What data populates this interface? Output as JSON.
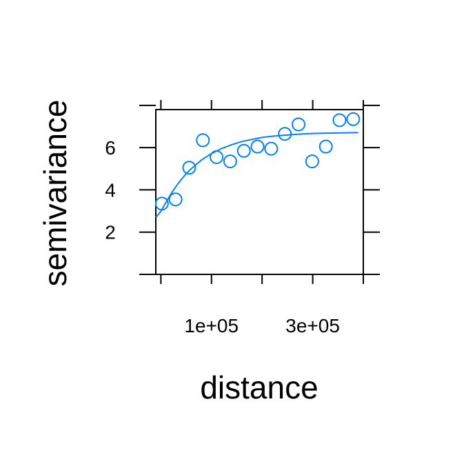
{
  "chart_data": {
    "type": "scatter",
    "xlabel": "distance",
    "ylabel": "semivariance",
    "xlim": [
      -10000,
      400000
    ],
    "ylim": [
      0,
      7.8
    ],
    "x_ticks": [
      0,
      100000,
      200000,
      300000,
      400000
    ],
    "x_tick_labels": [
      "",
      "1e+05",
      "",
      "3e+05",
      ""
    ],
    "y_ticks": [
      0,
      2,
      4,
      6,
      8
    ],
    "y_tick_labels": [
      "",
      "2",
      "4",
      "6",
      ""
    ],
    "grid": false,
    "colors": {
      "points": "#0080ff",
      "fit": "#0080ff",
      "axes": "#000000"
    },
    "series": [
      {
        "type": "scatter",
        "x": [
          2000,
          29000,
          56000,
          83000,
          110000,
          137000,
          164000,
          191000,
          218000,
          245000,
          272000,
          299000,
          326000,
          353000,
          380000
        ],
        "values": [
          3.35,
          3.55,
          5.05,
          6.35,
          5.55,
          5.35,
          5.85,
          6.05,
          5.95,
          6.65,
          7.1,
          5.35,
          6.05,
          7.3,
          7.35
        ]
      },
      {
        "type": "line",
        "x": [
          -10000,
          0,
          10000,
          20000,
          30000,
          40000,
          50000,
          60000,
          80000,
          100000,
          120000,
          140000,
          160000,
          180000,
          200000,
          220000,
          240000,
          260000,
          280000,
          300000,
          320000,
          340000,
          360000,
          380000,
          390000
        ],
        "values": [
          2.7,
          2.98,
          3.41,
          3.81,
          4.17,
          4.48,
          4.76,
          5.0,
          5.41,
          5.72,
          5.96,
          6.14,
          6.29,
          6.39,
          6.48,
          6.54,
          6.58,
          6.62,
          6.65,
          6.67,
          6.68,
          6.69,
          6.7,
          6.71,
          6.71
        ]
      }
    ]
  }
}
